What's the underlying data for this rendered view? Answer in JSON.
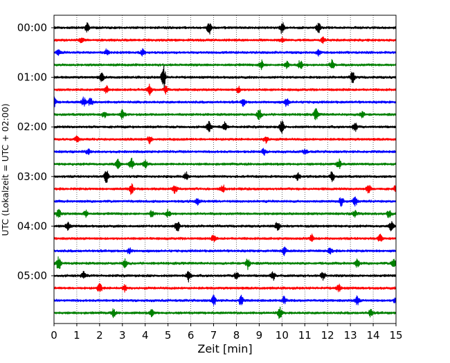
{
  "chart_data": {
    "type": "line",
    "title": "",
    "xlabel": "Zeit  [min]",
    "ylabel": "UTC (Lokalzeit = UTC + 02:00)",
    "xlim": [
      0,
      15
    ],
    "x_ticks": [
      "0",
      "1",
      "2",
      "3",
      "4",
      "5",
      "6",
      "7",
      "8",
      "9",
      "10",
      "11",
      "12",
      "13",
      "14",
      "15"
    ],
    "y_ticks": [
      "00:00",
      "01:00",
      "02:00",
      "03:00",
      "04:00",
      "05:00"
    ],
    "grid": "vertical dotted lines at each minute",
    "trace_interval_min": 15,
    "trace_colors": [
      "#000000",
      "#ff0000",
      "#0000ff",
      "#008000"
    ],
    "traces": [
      {
        "start": "00:00",
        "color": "#000000",
        "events": [
          [
            1.45,
            1.0
          ],
          [
            6.8,
            1.6
          ],
          [
            10.0,
            1.3
          ],
          [
            11.6,
            1.2
          ]
        ]
      },
      {
        "start": "00:15",
        "color": "#ff0000",
        "events": [
          [
            1.2,
            0.6
          ],
          [
            10.0,
            0.5
          ],
          [
            11.8,
            0.6
          ]
        ]
      },
      {
        "start": "00:30",
        "color": "#0000ff",
        "events": [
          [
            0.2,
            0.6
          ],
          [
            2.3,
            0.7
          ],
          [
            3.9,
            0.8
          ],
          [
            11.6,
            0.7
          ]
        ]
      },
      {
        "start": "00:45",
        "color": "#008000",
        "events": [
          [
            9.1,
            1.1
          ],
          [
            10.2,
            0.9
          ],
          [
            10.8,
            1.0
          ],
          [
            12.2,
            1.2
          ]
        ]
      },
      {
        "start": "01:00",
        "color": "#000000",
        "events": [
          [
            2.1,
            1.0
          ],
          [
            4.8,
            2.6
          ],
          [
            13.1,
            1.3
          ]
        ]
      },
      {
        "start": "01:15",
        "color": "#ff0000",
        "events": [
          [
            2.3,
            0.8
          ],
          [
            4.2,
            1.2
          ],
          [
            4.9,
            0.9
          ],
          [
            8.1,
            0.7
          ]
        ]
      },
      {
        "start": "01:30",
        "color": "#0000ff",
        "events": [
          [
            0.0,
            1.1
          ],
          [
            1.3,
            1.2
          ],
          [
            1.6,
            0.9
          ],
          [
            8.3,
            0.8
          ],
          [
            10.2,
            1.0
          ]
        ]
      },
      {
        "start": "01:45",
        "color": "#008000",
        "events": [
          [
            2.2,
            0.7
          ],
          [
            3.0,
            1.1
          ],
          [
            9.0,
            1.3
          ],
          [
            11.5,
            1.4
          ],
          [
            13.5,
            0.8
          ]
        ]
      },
      {
        "start": "02:00",
        "color": "#000000",
        "events": [
          [
            6.8,
            1.4
          ],
          [
            7.5,
            1.0
          ],
          [
            10.0,
            1.5
          ],
          [
            13.2,
            1.2
          ]
        ]
      },
      {
        "start": "02:15",
        "color": "#ff0000",
        "events": [
          [
            1.0,
            0.7
          ],
          [
            4.2,
            0.9
          ],
          [
            9.3,
            0.8
          ]
        ]
      },
      {
        "start": "02:30",
        "color": "#0000ff",
        "events": [
          [
            1.5,
            0.6
          ],
          [
            9.2,
            0.7
          ],
          [
            11.0,
            0.6
          ]
        ]
      },
      {
        "start": "02:45",
        "color": "#008000",
        "events": [
          [
            2.8,
            1.1
          ],
          [
            3.4,
            1.3
          ],
          [
            4.0,
            0.9
          ],
          [
            12.5,
            1.1
          ]
        ]
      },
      {
        "start": "03:00",
        "color": "#000000",
        "events": [
          [
            2.3,
            1.6
          ],
          [
            5.8,
            1.0
          ],
          [
            10.7,
            0.9
          ],
          [
            12.2,
            1.2
          ]
        ]
      },
      {
        "start": "03:15",
        "color": "#ff0000",
        "events": [
          [
            3.4,
            1.3
          ],
          [
            5.3,
            1.1
          ],
          [
            7.4,
            0.9
          ],
          [
            13.8,
            1.0
          ],
          [
            15.0,
            0.9
          ]
        ]
      },
      {
        "start": "03:30",
        "color": "#0000ff",
        "events": [
          [
            6.3,
            0.8
          ],
          [
            12.6,
            1.1
          ],
          [
            13.2,
            1.0
          ]
        ]
      },
      {
        "start": "03:45",
        "color": "#008000",
        "events": [
          [
            0.2,
            0.9
          ],
          [
            1.4,
            0.8
          ],
          [
            4.3,
            0.9
          ],
          [
            5.0,
            0.8
          ],
          [
            13.2,
            0.8
          ],
          [
            14.7,
            1.0
          ]
        ]
      },
      {
        "start": "04:00",
        "color": "#000000",
        "events": [
          [
            0.6,
            0.9
          ],
          [
            5.4,
            1.5
          ],
          [
            9.8,
            1.1
          ],
          [
            14.8,
            1.1
          ]
        ]
      },
      {
        "start": "04:15",
        "color": "#ff0000",
        "events": [
          [
            7.0,
            0.7
          ],
          [
            11.3,
            0.9
          ],
          [
            14.3,
            0.9
          ]
        ]
      },
      {
        "start": "04:30",
        "color": "#0000ff",
        "events": [
          [
            3.3,
            0.7
          ],
          [
            10.1,
            0.9
          ],
          [
            12.1,
            0.8
          ]
        ]
      },
      {
        "start": "04:45",
        "color": "#008000",
        "events": [
          [
            0.2,
            1.6
          ],
          [
            3.1,
            1.0
          ],
          [
            8.5,
            1.3
          ],
          [
            13.3,
            0.9
          ],
          [
            14.9,
            1.1
          ]
        ]
      },
      {
        "start": "05:00",
        "color": "#000000",
        "events": [
          [
            1.3,
            0.9
          ],
          [
            5.9,
            1.3
          ],
          [
            8.0,
            1.1
          ],
          [
            9.6,
            1.1
          ],
          [
            11.8,
            1.0
          ]
        ]
      },
      {
        "start": "05:15",
        "color": "#ff0000",
        "events": [
          [
            2.0,
            1.2
          ],
          [
            3.1,
            0.8
          ],
          [
            12.5,
            0.8
          ]
        ]
      },
      {
        "start": "05:30",
        "color": "#0000ff",
        "events": [
          [
            7.0,
            1.2
          ],
          [
            8.2,
            1.1
          ],
          [
            10.1,
            0.9
          ],
          [
            13.3,
            1.0
          ],
          [
            15.0,
            0.9
          ]
        ]
      },
      {
        "start": "05:45",
        "color": "#008000",
        "events": [
          [
            2.6,
            0.9
          ],
          [
            4.3,
            0.8
          ],
          [
            9.9,
            1.3
          ],
          [
            13.9,
            0.9
          ]
        ]
      }
    ]
  }
}
